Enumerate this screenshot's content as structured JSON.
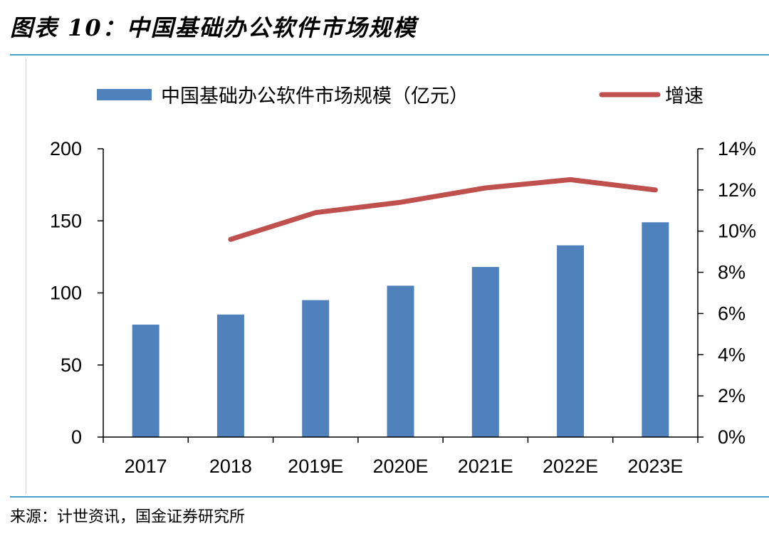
{
  "title": "图表 10：中国基础办公软件市场规模",
  "source": "来源：计世资讯，国金证券研究所",
  "colors": {
    "bar": "#4f81bd",
    "line": "#c0504d",
    "rule": "#4aa3c8"
  },
  "chart_data": {
    "type": "bar",
    "categories": [
      "2017",
      "2018",
      "2019E",
      "2020E",
      "2021E",
      "2022E",
      "2023E"
    ],
    "series": [
      {
        "name": "中国基础办公软件市场规模（亿元）",
        "type": "bar",
        "axis": "left",
        "values": [
          78,
          85,
          95,
          105,
          118,
          133,
          149
        ]
      },
      {
        "name": "增速",
        "type": "line",
        "axis": "right",
        "values": [
          null,
          9.6,
          10.9,
          11.4,
          12.1,
          12.5,
          12.0
        ]
      }
    ],
    "y_left": {
      "min": 0,
      "max": 200,
      "ticks": [
        "0",
        "50",
        "100",
        "150",
        "200"
      ]
    },
    "y_right": {
      "min": 0,
      "max": 14,
      "ticks": [
        "0%",
        "2%",
        "4%",
        "6%",
        "8%",
        "10%",
        "12%",
        "14%"
      ]
    },
    "legend": {
      "position": "top"
    },
    "grid": false
  }
}
